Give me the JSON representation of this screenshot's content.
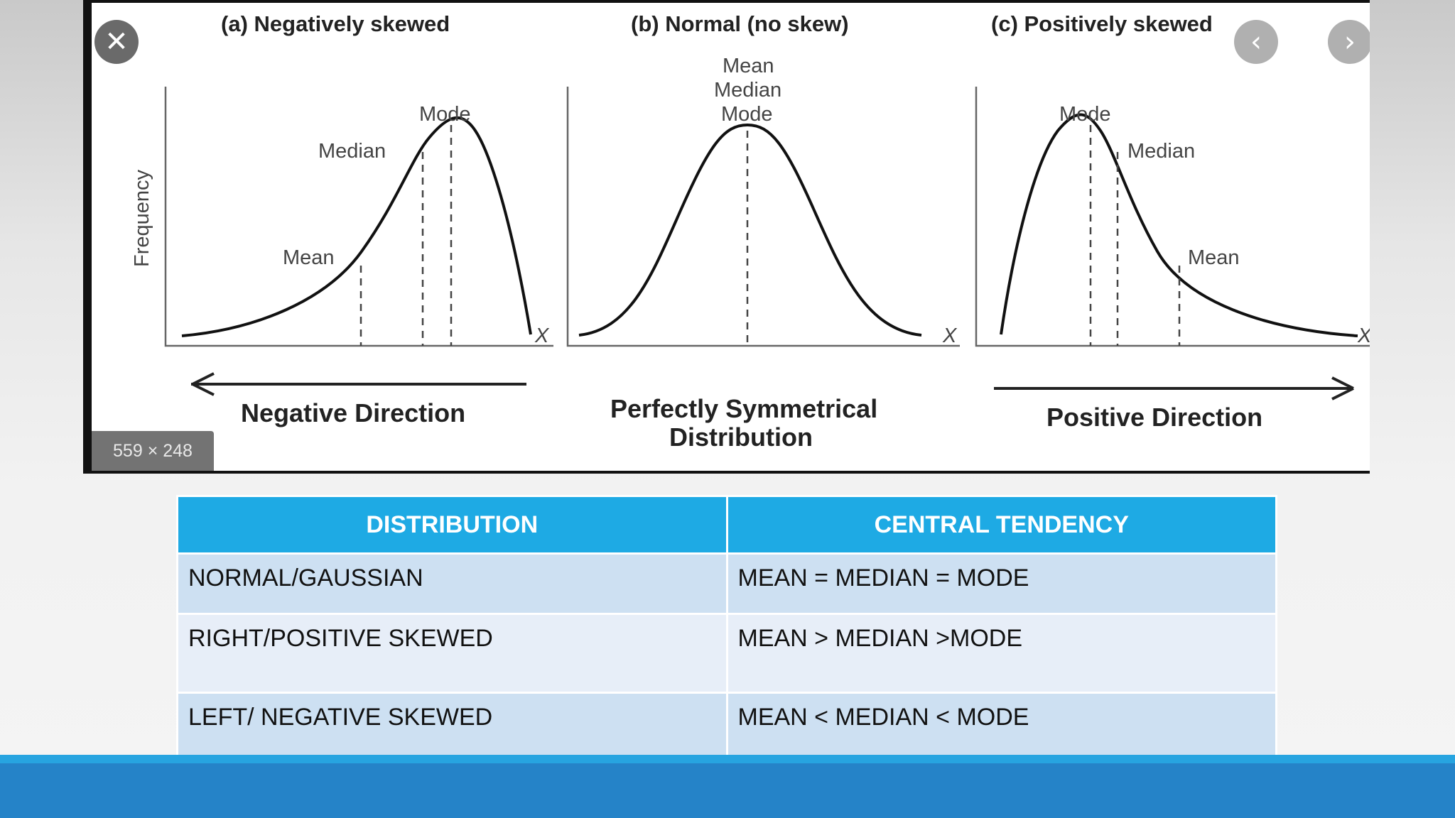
{
  "figure": {
    "panels": [
      {
        "title": "(a) Negatively skewed",
        "labels": [
          "Mode",
          "Median",
          "Mean"
        ],
        "axis_x": "X"
      },
      {
        "title": "(b) Normal (no skew)",
        "labels": [
          "Mean",
          "Median",
          "Mode"
        ],
        "axis_x": "X"
      },
      {
        "title": "(c) Positively skewed",
        "labels": [
          "Mode",
          "Median",
          "Mean"
        ],
        "axis_x": "X"
      }
    ],
    "y_axis_label": "Frequency",
    "directions": {
      "negative": "Negative Direction",
      "symmetric_line1": "Perfectly Symmetrical",
      "symmetric_line2": "Distribution",
      "positive": "Positive Direction"
    },
    "image_size_badge": "559 × 248"
  },
  "viewer": {
    "close_icon": "close-icon",
    "prev_icon": "chevron-left-icon",
    "next_icon": "chevron-right-icon"
  },
  "table": {
    "headers": [
      "DISTRIBUTION",
      "CENTRAL TENDENCY"
    ],
    "rows": [
      [
        "NORMAL/GAUSSIAN",
        "MEAN = MEDIAN = MODE"
      ],
      [
        "RIGHT/POSITIVE SKEWED",
        "MEAN > MEDIAN >MODE"
      ],
      [
        "LEFT/ NEGATIVE SKEWED",
        "MEAN < MEDIAN < MODE"
      ]
    ]
  },
  "colors": {
    "table_header": "#1eaae4",
    "row_dark": "#cde0f2",
    "row_light": "#e7eef8",
    "footer": "#2583c8"
  }
}
